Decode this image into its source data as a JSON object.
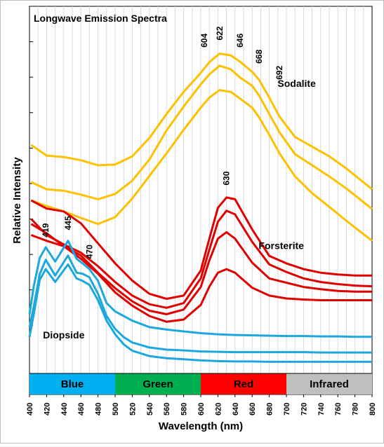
{
  "chart_data": {
    "type": "line",
    "title": "Longwave Emission Spectra",
    "xlabel": "Wavelength (nm)",
    "ylabel": "Relative Intensity",
    "xlim": [
      400,
      800
    ],
    "ylim": [
      0,
      10
    ],
    "x_ticks": [
      "400",
      "420",
      "440",
      "460",
      "480",
      "500",
      "520",
      "540",
      "560",
      "580",
      "600",
      "620",
      "640",
      "660",
      "680",
      "700",
      "720",
      "740",
      "760",
      "780",
      "800"
    ],
    "grid": true,
    "bands": [
      {
        "label": "Blue",
        "from": 400,
        "to": 500,
        "color": "#00B0F0"
      },
      {
        "label": "Green",
        "from": 500,
        "to": 600,
        "color": "#00B050"
      },
      {
        "label": "Red",
        "from": 600,
        "to": 700,
        "color": "#FF0000"
      },
      {
        "label": "Infrared",
        "from": 700,
        "to": 800,
        "color": "#BFBFBF"
      }
    ],
    "groups": [
      {
        "name": "Sodalite",
        "color": "#FFC000",
        "peak_labels": [
          "604",
          "622",
          "646",
          "668",
          "692"
        ],
        "series": [
          {
            "x": [
              402,
              420,
              440,
              460,
              480,
              500,
              520,
              540,
              560,
              580,
              600,
              610,
              622,
              635,
              646,
              660,
              668,
              680,
              692,
              710,
              730,
              750,
              770,
              800
            ],
            "y": [
              6.13,
              5.83,
              5.79,
              5.7,
              5.56,
              5.58,
              5.81,
              6.32,
              6.99,
              7.61,
              8.14,
              8.44,
              8.68,
              8.63,
              8.45,
              8.17,
              7.95,
              7.45,
              6.92,
              6.35,
              6.08,
              5.81,
              5.47,
              4.89
            ]
          },
          {
            "x": [
              402,
              420,
              440,
              460,
              480,
              500,
              520,
              540,
              560,
              580,
              600,
              610,
              622,
              635,
              646,
              660,
              668,
              680,
              692,
              710,
              730,
              750,
              770,
              800
            ],
            "y": [
              5.09,
              4.89,
              4.85,
              4.74,
              4.61,
              4.76,
              5.13,
              5.72,
              6.53,
              7.2,
              7.82,
              8.1,
              8.34,
              8.24,
              8.01,
              7.78,
              7.51,
              6.99,
              6.48,
              5.87,
              5.56,
              5.25,
              4.91,
              4.34
            ]
          },
          {
            "x": [
              402,
              420,
              440,
              460,
              480,
              500,
              520,
              540,
              560,
              580,
              600,
              610,
              622,
              635,
              646,
              660,
              668,
              680,
              692,
              710,
              730,
              750,
              770,
              800
            ],
            "y": [
              4.58,
              4.42,
              4.27,
              4.09,
              3.92,
              4.11,
              4.63,
              5.26,
              5.89,
              6.55,
              7.17,
              7.45,
              7.66,
              7.61,
              7.42,
              7.17,
              6.9,
              6.41,
              5.89,
              5.25,
              4.78,
              4.4,
              4.01,
              3.45
            ]
          }
        ]
      },
      {
        "name": "Forsterite",
        "color": "#E00000",
        "peak_labels": [
          "630"
        ],
        "series": [
          {
            "x": [
              402,
              420,
              440,
              460,
              480,
              500,
              520,
              540,
              560,
              580,
              600,
              610,
              620,
              630,
              640,
              660,
              680,
              700,
              720,
              740,
              760,
              780,
              800
            ],
            "y": [
              4.58,
              4.35,
              4.27,
              3.94,
              3.38,
              2.82,
              2.34,
              1.97,
              1.83,
              1.92,
              2.62,
              3.51,
              4.37,
              4.66,
              4.61,
              3.77,
              3.03,
              2.82,
              2.66,
              2.56,
              2.51,
              2.48,
              2.48
            ]
          },
          {
            "x": [
              402,
              420,
              440,
              460,
              480,
              500,
              520,
              540,
              560,
              580,
              600,
              610,
              620,
              630,
              640,
              660,
              680,
              700,
              720,
              740,
              760,
              780,
              800
            ],
            "y": [
              4.06,
              3.61,
              3.35,
              3.12,
              2.74,
              2.3,
              1.92,
              1.68,
              1.58,
              1.71,
              2.4,
              3.2,
              3.98,
              4.29,
              4.19,
              3.42,
              2.79,
              2.58,
              2.4,
              2.3,
              2.24,
              2.2,
              2.18
            ]
          },
          {
            "x": [
              402,
              420,
              440,
              460,
              480,
              500,
              520,
              540,
              560,
              580,
              600,
              610,
              620,
              630,
              640,
              660,
              680,
              700,
              720,
              740,
              760,
              780,
              800
            ],
            "y": [
              3.61,
              3.45,
              3.3,
              3.04,
              2.56,
              2.13,
              1.76,
              1.5,
              1.4,
              1.53,
              2.16,
              2.9,
              3.51,
              3.69,
              3.51,
              2.84,
              2.4,
              2.28,
              2.16,
              2.1,
              2.05,
              2.03,
              2.03
            ]
          },
          {
            "x": [
              402,
              420,
              440,
              460,
              480,
              500,
              520,
              540,
              560,
              580,
              600,
              610,
              620,
              630,
              640,
              660,
              680,
              700,
              720,
              740,
              760,
              780,
              800
            ],
            "y": [
              3.92,
              3.66,
              3.3,
              2.95,
              2.53,
              2.01,
              1.64,
              1.35,
              1.19,
              1.25,
              1.66,
              2.17,
              2.56,
              2.66,
              2.56,
              2.14,
              1.92,
              1.84,
              1.81,
              1.79,
              1.79,
              1.79,
              1.79
            ]
          }
        ]
      },
      {
        "name": "Diopside",
        "color": "#1CA8DD",
        "peak_labels": [
          "419",
          "445",
          "470"
        ],
        "series": [
          {
            "x": [
              400,
              405,
              412,
              419,
              430,
              445,
              455,
              462,
              470,
              480,
              490,
              500,
              510,
              520,
              540,
              560,
              580,
              600,
              620,
              640,
              660,
              680,
              700,
              720,
              740,
              760,
              780,
              800
            ],
            "y": [
              1.4,
              2.18,
              2.97,
              3.27,
              2.87,
              3.45,
              2.95,
              2.82,
              2.66,
              2.33,
              1.71,
              1.48,
              1.35,
              1.22,
              1.04,
              0.97,
              0.92,
              0.87,
              0.84,
              0.82,
              0.81,
              0.8,
              0.79,
              0.79,
              0.78,
              0.78,
              0.77,
              0.77
            ]
          },
          {
            "x": [
              400,
              405,
              412,
              419,
              430,
              445,
              455,
              462,
              470,
              480,
              490,
              500,
              510,
              520,
              540,
              560,
              580,
              600,
              620,
              640,
              660,
              680,
              700,
              720,
              740,
              760,
              780,
              800
            ],
            "y": [
              1.04,
              1.61,
              2.52,
              2.92,
              2.48,
              3.04,
              2.56,
              2.53,
              2.43,
              1.97,
              1.35,
              0.99,
              0.76,
              0.61,
              0.47,
              0.41,
              0.39,
              0.36,
              0.35,
              0.34,
              0.34,
              0.34,
              0.34,
              0.34,
              0.33,
              0.33,
              0.33,
              0.33
            ]
          },
          {
            "x": [
              400,
              405,
              412,
              419,
              430,
              445,
              455,
              462,
              470,
              480,
              490,
              500,
              510,
              520,
              540,
              560,
              580,
              600,
              620,
              640,
              660,
              680,
              700,
              720,
              740,
              760,
              780,
              800
            ],
            "y": [
              0.76,
              1.4,
              2.36,
              2.66,
              2.3,
              2.79,
              2.4,
              2.33,
              2.22,
              1.79,
              1.22,
              0.84,
              0.56,
              0.38,
              0.23,
              0.17,
              0.14,
              0.11,
              0.09,
              0.08,
              0.08,
              0.07,
              0.07,
              0.07,
              0.07,
              0.07,
              0.07,
              0.07
            ]
          }
        ]
      }
    ]
  }
}
